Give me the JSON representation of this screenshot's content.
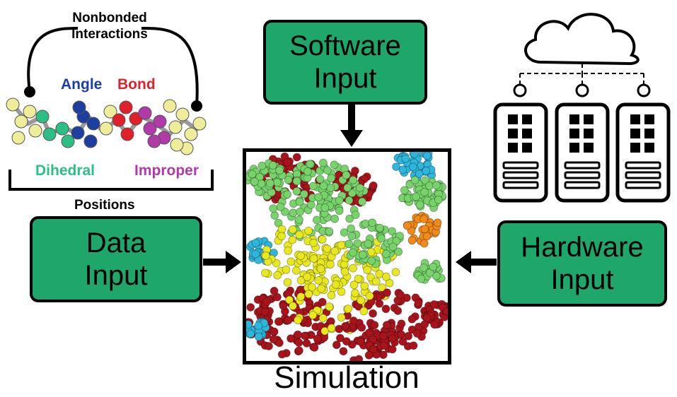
{
  "molecule": {
    "nonbonded_line1": "Nonbonded",
    "nonbonded_line2": "Interactions",
    "angle": "Angle",
    "bond": "Bond",
    "dihedral": "Dihedral",
    "improper": "Improper",
    "positions": "Positions"
  },
  "software": {
    "line1": "Software",
    "line2": "Input"
  },
  "data": {
    "line1": "Data",
    "line2": "Input"
  },
  "hardware": {
    "line1": "Hardware",
    "line2": "Input"
  },
  "simulation": {
    "title": "Simulation"
  },
  "colors": {
    "box_fill": "#1fa66b",
    "angle": "#1f3fa0",
    "bond": "#e0202a",
    "dihedral": "#2bbf85",
    "improper": "#b03aa8",
    "bead_yellow": "#eded9a",
    "bead_red": "#a8141c",
    "bead_green": "#77d36a",
    "bead_yellow_bright": "#e8e820",
    "bead_cyan": "#2fb6dc",
    "bead_orange": "#f08a1a"
  },
  "icons": [
    "cloud-icon",
    "server-icon",
    "arrow-right-icon",
    "arrow-left-icon",
    "arrow-down-icon"
  ]
}
